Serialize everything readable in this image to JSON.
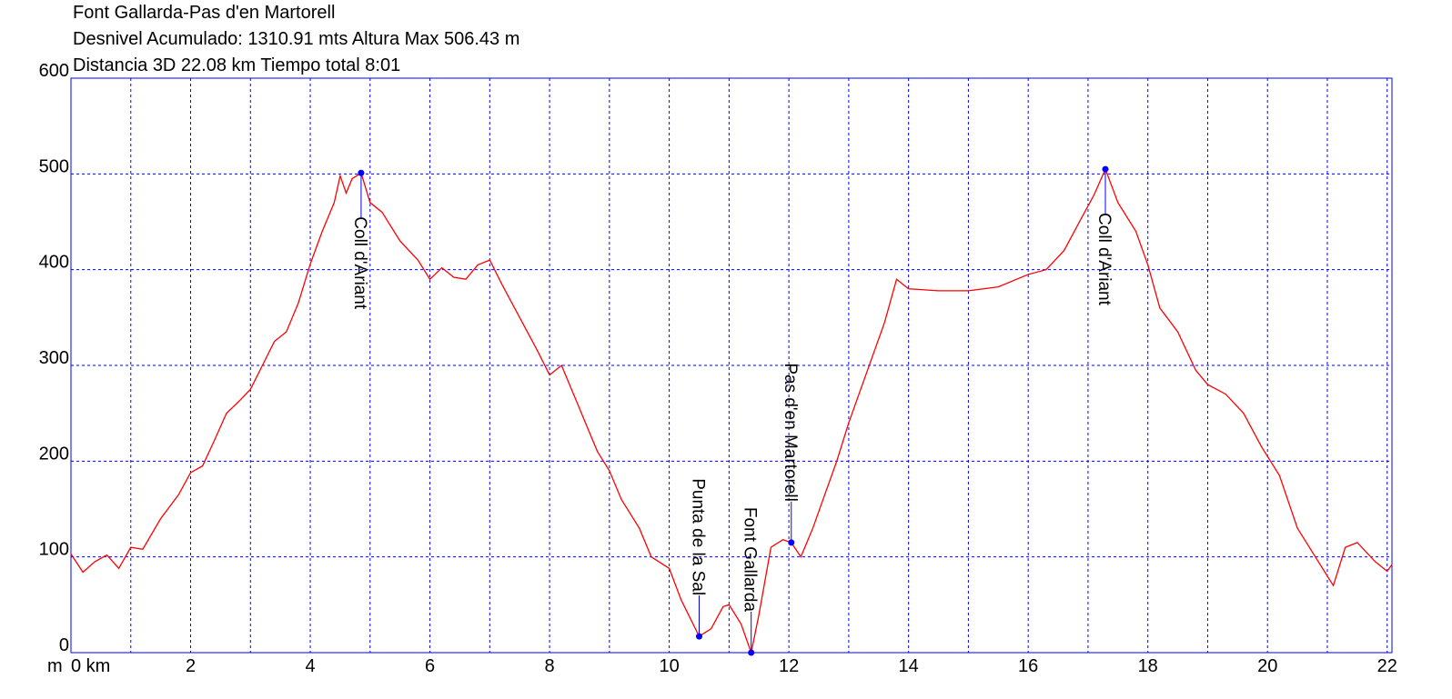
{
  "chart_data": {
    "type": "line",
    "title": "Font Gallarda-Pas d'en Martorell",
    "subtitle": [
      "Desnivel Acumulado: 1310.91 mts  Altura Max 506.43 m",
      "Distancia 3D 22.08 km  Tiempo total 8:01"
    ],
    "y_label": "m",
    "xlim": [
      0,
      22.08
    ],
    "ylim": [
      0,
      600
    ],
    "xticks": [
      {
        "value": 0,
        "label": "0 km"
      },
      2,
      4,
      6,
      8,
      10,
      12,
      14,
      16,
      18,
      20,
      22
    ],
    "x_minor_grid": [
      1,
      3,
      5,
      7,
      9,
      11,
      13,
      15,
      17,
      19,
      21
    ],
    "yticks": [
      0,
      100,
      200,
      300,
      400,
      500,
      600
    ],
    "grid": true,
    "series": [
      {
        "color": "#ff0000",
        "x": [
          0,
          0.2,
          0.4,
          0.6,
          0.8,
          1.0,
          1.2,
          1.5,
          1.8,
          2.0,
          2.2,
          2.4,
          2.6,
          2.8,
          3.0,
          3.2,
          3.4,
          3.6,
          3.8,
          4.0,
          4.2,
          4.4,
          4.5,
          4.6,
          4.7,
          4.85,
          5.0,
          5.2,
          5.5,
          5.8,
          6.0,
          6.2,
          6.4,
          6.6,
          6.8,
          7.0,
          7.2,
          7.5,
          7.8,
          8.0,
          8.2,
          8.4,
          8.6,
          8.8,
          9.0,
          9.2,
          9.5,
          9.7,
          10.0,
          10.2,
          10.5,
          10.7,
          10.9,
          11.0,
          11.2,
          11.37,
          11.5,
          11.7,
          11.9,
          12.04,
          12.2,
          12.4,
          12.6,
          12.8,
          13.0,
          13.2,
          13.4,
          13.6,
          13.8,
          14.0,
          14.5,
          15.0,
          15.5,
          16.0,
          16.3,
          16.6,
          16.9,
          17.1,
          17.29,
          17.5,
          17.8,
          18.0,
          18.2,
          18.5,
          18.8,
          19.0,
          19.3,
          19.6,
          19.9,
          20.2,
          20.5,
          20.8,
          21.0,
          21.1,
          21.3,
          21.5,
          21.8,
          22.0,
          22.08
        ],
        "values": [
          103,
          84,
          95,
          102,
          88,
          110,
          108,
          140,
          165,
          188,
          195,
          222,
          250,
          262,
          275,
          300,
          325,
          335,
          365,
          406,
          440,
          470,
          498,
          480,
          495,
          501,
          470,
          460,
          430,
          410,
          390,
          402,
          392,
          390,
          405,
          410,
          385,
          350,
          315,
          290,
          300,
          270,
          240,
          210,
          190,
          160,
          130,
          100,
          88,
          55,
          17,
          25,
          48,
          50,
          30,
          0,
          40,
          110,
          118,
          115,
          100,
          130,
          165,
          200,
          240,
          275,
          310,
          345,
          390,
          380,
          378,
          378,
          382,
          395,
          400,
          420,
          455,
          478,
          505,
          470,
          440,
          405,
          360,
          335,
          295,
          280,
          270,
          250,
          215,
          185,
          130,
          100,
          80,
          70,
          110,
          115,
          95,
          85,
          92
        ]
      }
    ],
    "waypoints": [
      {
        "name": "Coll d'Ariant",
        "x": 4.85,
        "y": 501
      },
      {
        "name": "Punta de la Sal",
        "x": 10.5,
        "y": 17
      },
      {
        "name": "Font Gallarda",
        "x": 11.37,
        "y": 0
      },
      {
        "name": "Pas d'en Martorell",
        "x": 12.04,
        "y": 115
      },
      {
        "name": "Coll d'Ariant",
        "x": 17.29,
        "y": 505
      }
    ]
  }
}
